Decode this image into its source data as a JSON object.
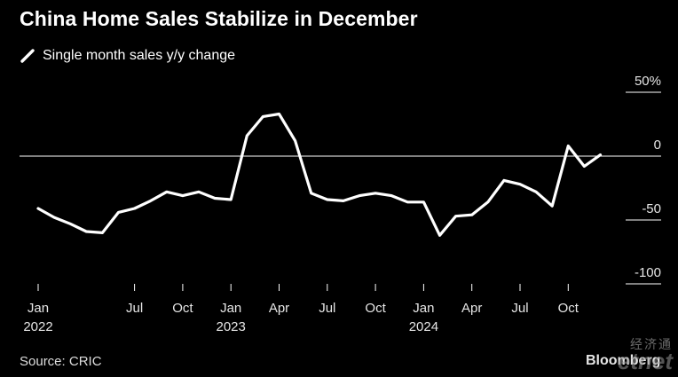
{
  "chart_data": {
    "type": "line",
    "title": "China Home Sales Stabilize in December",
    "subtitle": "",
    "series": [
      {
        "name": "Single month sales y/y change",
        "color": "#ffffff",
        "x": [
          "2022-01",
          "2022-02",
          "2022-03",
          "2022-04",
          "2022-05",
          "2022-06",
          "2022-07",
          "2022-08",
          "2022-09",
          "2022-10",
          "2022-11",
          "2022-12",
          "2023-01",
          "2023-02",
          "2023-03",
          "2023-04",
          "2023-05",
          "2023-06",
          "2023-07",
          "2023-08",
          "2023-09",
          "2023-10",
          "2023-11",
          "2023-12",
          "2024-01",
          "2024-02",
          "2024-03",
          "2024-04",
          "2024-05",
          "2024-06",
          "2024-07",
          "2024-08",
          "2024-09",
          "2024-10",
          "2024-11",
          "2024-12"
        ],
        "values": [
          -41,
          -48,
          -53,
          -59,
          -60,
          -44,
          -41,
          -35,
          -28,
          -31,
          -28,
          -33,
          -34,
          16,
          31,
          33,
          12,
          -29,
          -34,
          -35,
          -31,
          -29,
          -31,
          -36,
          -36,
          -62,
          -47,
          -46,
          -36,
          -19,
          -22,
          -28,
          -39,
          8,
          -8,
          1
        ]
      }
    ],
    "x_ticks": [
      {
        "month": "2022-01",
        "label": "Jan",
        "year": "2022"
      },
      {
        "month": "2022-07",
        "label": "Jul",
        "year": ""
      },
      {
        "month": "2022-10",
        "label": "Oct",
        "year": ""
      },
      {
        "month": "2023-01",
        "label": "Jan",
        "year": "2023"
      },
      {
        "month": "2023-04",
        "label": "Apr",
        "year": ""
      },
      {
        "month": "2023-07",
        "label": "Jul",
        "year": ""
      },
      {
        "month": "2023-10",
        "label": "Oct",
        "year": ""
      },
      {
        "month": "2024-01",
        "label": "Jan",
        "year": "2024"
      },
      {
        "month": "2024-04",
        "label": "Apr",
        "year": ""
      },
      {
        "month": "2024-07",
        "label": "Jul",
        "year": ""
      },
      {
        "month": "2024-10",
        "label": "Oct",
        "year": ""
      }
    ],
    "y_ticks": [
      {
        "value": 50,
        "label": "50%"
      },
      {
        "value": 0,
        "label": "0"
      },
      {
        "value": -50,
        "label": "-50"
      },
      {
        "value": -100,
        "label": "-100"
      }
    ],
    "ylim": [
      -100,
      50
    ],
    "zero_line": true,
    "grid": false,
    "legend_position": "top-left"
  },
  "footer": {
    "source": "Source: CRIC",
    "brand": "Bloomberg"
  },
  "watermark": {
    "chinese": "经济通",
    "latin": "etnet"
  },
  "colors": {
    "background": "#000000",
    "line": "#ffffff",
    "text": "#ffffff"
  }
}
